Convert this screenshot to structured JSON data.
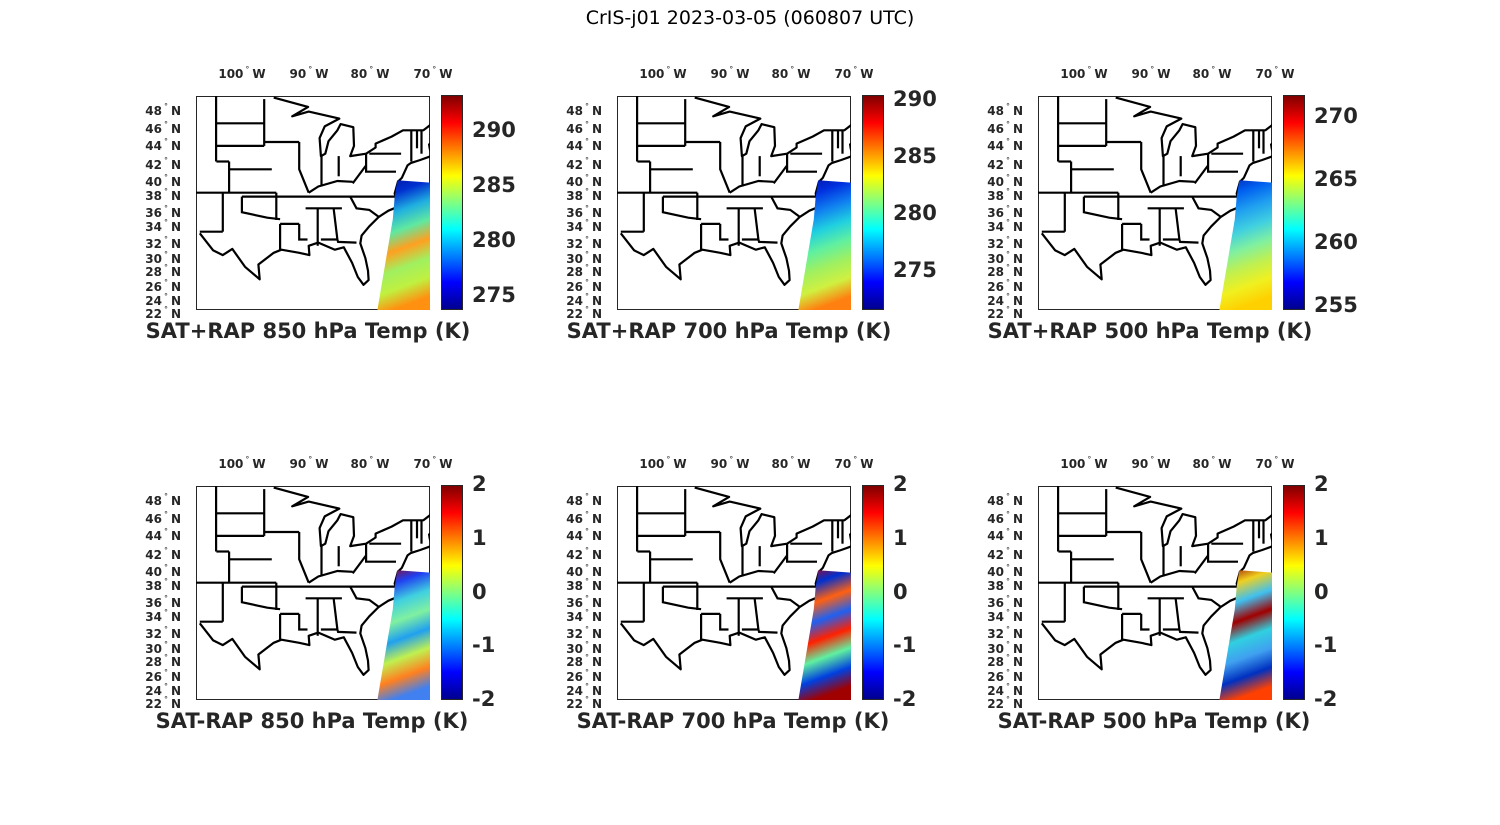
{
  "figure_title": "CrIS-j01 2023-03-05 (060807 UTC)",
  "lon_labels": [
    "100",
    "90",
    "80",
    "70"
  ],
  "lon_suffix": "W",
  "lat_labels": [
    "48",
    "46",
    "44",
    "42",
    "40",
    "38",
    "36",
    "34",
    "32",
    "30",
    "28",
    "26",
    "24",
    "22"
  ],
  "lat_suffix": "N",
  "colormap": "jet",
  "panels": [
    {
      "title": "SAT+RAP 850 hPa Temp (K)",
      "clim": [
        273.7,
        293.3
      ],
      "ticks": [
        "275",
        "280",
        "285",
        "290"
      ],
      "swath_colors": [
        "#00109a",
        "#0030d0",
        "#20b0e0",
        "#60e8a0",
        "#ffa020",
        "#a0f060",
        "#c0f040",
        "#ff9010"
      ]
    },
    {
      "title": "SAT+RAP 700 hPa Temp (K)",
      "clim": [
        271.6,
        290.4
      ],
      "ticks": [
        "275",
        "280",
        "285",
        "290"
      ],
      "swath_colors": [
        "#00109a",
        "#0030e0",
        "#1080f0",
        "#20d0e0",
        "#60f0a0",
        "#a0f060",
        "#d0f040",
        "#ff8010"
      ]
    },
    {
      "title": "SAT+RAP 500 hPa Temp (K)",
      "clim": [
        254.7,
        271.7
      ],
      "ticks": [
        "255",
        "260",
        "265",
        "270"
      ],
      "swath_colors": [
        "#0020b0",
        "#0060f0",
        "#20a0f0",
        "#40d0e0",
        "#80f0a0",
        "#c0f050",
        "#f0f020",
        "#ffd000"
      ]
    },
    {
      "title": "SAT-RAP 850 hPa Temp (K)",
      "clim": [
        -2,
        2
      ],
      "ticks": [
        "-2",
        "-1",
        "0",
        "1",
        "2"
      ],
      "swath_colors": [
        "#a00000",
        "#2040f0",
        "#40d0e0",
        "#80f0a0",
        "#20a0f0",
        "#c0f050",
        "#ff8020",
        "#4080f0"
      ]
    },
    {
      "title": "SAT-RAP 700 hPa Temp (K)",
      "clim": [
        -2,
        2
      ],
      "ticks": [
        "-2",
        "-1",
        "0",
        "1",
        "2"
      ],
      "swath_colors": [
        "#c00000",
        "#0030d0",
        "#ff6010",
        "#2060f0",
        "#ff2000",
        "#60f0a0",
        "#0040e0",
        "#a00000"
      ]
    },
    {
      "title": "SAT-RAP 500 hPa Temp (K)",
      "clim": [
        -2,
        2
      ],
      "ticks": [
        "-2",
        "-1",
        "0",
        "1",
        "2"
      ],
      "swath_colors": [
        "#900000",
        "#f0d020",
        "#40c0f0",
        "#a00000",
        "#30d0e0",
        "#40a0f0",
        "#0030c0",
        "#ff4000"
      ]
    }
  ]
}
